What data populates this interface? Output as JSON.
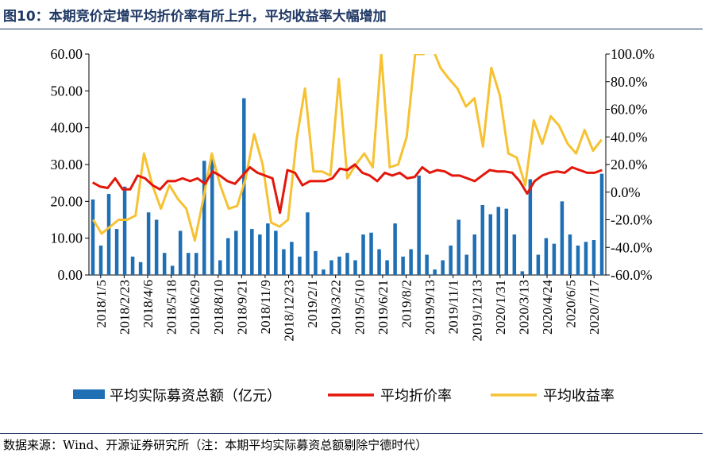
{
  "figure": {
    "title": "图10：本期竞价定增平均折价率有所上升，平均收益率大幅增加",
    "source": "数据来源：Wind、开源证券研究所（注：本期平均实际募资总额剔除宁德时代）"
  },
  "colors": {
    "bar": "#1f6fb5",
    "discount": "#e3170a",
    "yield": "#f6c233",
    "title": "#1f3864"
  },
  "chart_data": {
    "type": "bar+line",
    "x_tick_labels": [
      "2018/1/5",
      "2018/2/23",
      "2018/4/6",
      "2018/5/18",
      "2018/6/29",
      "2018/8/10",
      "2018/9/21",
      "2018/11/9",
      "2018/12/23",
      "2019/2/1",
      "2019/3/22",
      "2019/5/10",
      "2019/6/21",
      "2019/8/2",
      "2019/9/13",
      "2019/11/1",
      "2019/12/13",
      "2020/1/31",
      "2020/3/13",
      "2020/4/24",
      "2020/6/5",
      "2020/7/17"
    ],
    "y_left": {
      "lim": [
        0,
        60
      ],
      "ticks": [
        "0.00",
        "10.00",
        "20.00",
        "30.00",
        "40.00",
        "50.00",
        "60.00"
      ]
    },
    "y_right": {
      "lim": [
        -60,
        100
      ],
      "ticks": [
        "-60.0%",
        "-40.0%",
        "-20.0%",
        "0.0%",
        "20.0%",
        "40.0%",
        "60.0%",
        "80.0%",
        "100.0%"
      ]
    },
    "legend_position": "bottom",
    "series": [
      {
        "name": "平均实际募资总额（亿元）",
        "type": "bar",
        "axis": "left",
        "values": [
          20.5,
          8,
          22,
          12.5,
          24,
          5,
          3.5,
          17,
          15,
          6,
          2.5,
          12,
          6,
          6,
          31,
          32,
          4,
          10,
          12,
          48,
          12.5,
          11,
          14,
          12,
          7,
          9,
          5,
          17,
          6.5,
          1.5,
          4,
          5,
          6,
          4,
          11,
          11.5,
          7,
          4,
          14,
          5,
          7,
          27,
          5.5,
          1.5,
          4,
          8,
          15,
          5.5,
          11,
          19,
          16.5,
          18.5,
          18,
          11,
          1,
          26,
          5.5,
          10,
          8.5,
          20,
          11,
          8,
          9,
          9.5,
          27.5
        ]
      },
      {
        "name": "平均折价率",
        "type": "line",
        "axis": "right",
        "values": [
          7,
          4,
          3,
          10,
          2,
          2,
          12,
          10,
          5,
          2,
          8,
          8,
          10,
          8,
          10,
          6,
          15,
          12,
          8,
          6,
          12,
          18,
          14,
          12,
          10,
          -15,
          16,
          14,
          5,
          8,
          8,
          8,
          10,
          17,
          16,
          20,
          14,
          12,
          8,
          14,
          12,
          14,
          10,
          11,
          18,
          14,
          16,
          15,
          12,
          12,
          10,
          8,
          12,
          16,
          15,
          15,
          14,
          8,
          -1,
          8,
          12,
          14,
          15,
          14,
          18,
          16,
          14,
          14,
          16
        ]
      },
      {
        "name": "平均收益率",
        "type": "line",
        "axis": "right",
        "values": [
          -20,
          -30,
          -25,
          -20,
          -20,
          -17,
          28,
          5,
          -12,
          5,
          -5,
          -12,
          -35,
          -5,
          28,
          5,
          -12,
          -10,
          10,
          42,
          20,
          -22,
          -25,
          -20,
          38,
          75,
          15,
          15,
          12,
          82,
          10,
          20,
          28,
          18,
          100,
          18,
          20,
          40,
          100,
          100,
          105,
          90,
          82,
          75,
          62,
          68,
          33,
          90,
          70,
          28,
          25,
          5,
          52,
          35,
          55,
          48,
          35,
          28,
          45,
          30,
          38
        ]
      }
    ]
  }
}
